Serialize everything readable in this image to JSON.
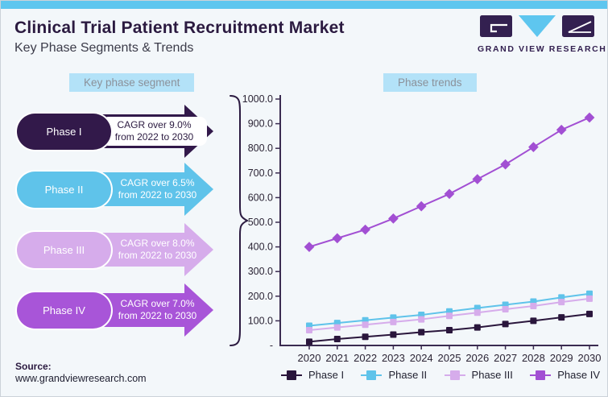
{
  "page": {
    "background": "#f3f7fa",
    "topbar_color": "#5ec6ef"
  },
  "header": {
    "title": "Clinical Trial Patient Recruitment Market",
    "subtitle": "Key Phase Segments & Trends",
    "logo": {
      "brand": "GRAND VIEW RESEARCH",
      "dark_color": "#332050",
      "blue_color": "#5ec6ef"
    }
  },
  "left_panel": {
    "section_label": "Key phase segment",
    "segments": [
      {
        "label": "Phase I",
        "cagr_line1": "CAGR over 9.0%",
        "cagr_line2": "from 2022 to 2030",
        "color": "#32194a",
        "label_on_white": true
      },
      {
        "label": "Phase II",
        "cagr_line1": "CAGR over 6.5%",
        "cagr_line2": "from 2022 to 2030",
        "color": "#5fc3ea",
        "label_on_white": false
      },
      {
        "label": "Phase III",
        "cagr_line1": "CAGR over 8.0%",
        "cagr_line2": "from 2022 to 2030",
        "color": "#d6aceb",
        "label_on_white": false
      },
      {
        "label": "Phase IV",
        "cagr_line1": "CAGR over 7.0%",
        "cagr_line2": "from 2022 to 2030",
        "color": "#a855d8",
        "label_on_white": false
      }
    ]
  },
  "right_panel": {
    "section_label": "Phase trends"
  },
  "chart_data": {
    "type": "line",
    "title": "Phase trends",
    "x": [
      2020,
      2021,
      2022,
      2023,
      2024,
      2025,
      2026,
      2027,
      2028,
      2029,
      2030
    ],
    "series": [
      {
        "name": "Phase I",
        "color": "#2a163c",
        "marker": "square",
        "values": [
          15,
          26,
          35,
          44,
          54,
          62,
          73,
          87,
          100,
          114,
          128
        ]
      },
      {
        "name": "Phase II",
        "color": "#5fc3ea",
        "marker": "square",
        "values": [
          80,
          91,
          102,
          113,
          124,
          138,
          152,
          165,
          178,
          195,
          210
        ]
      },
      {
        "name": "Phase III",
        "color": "#d6aceb",
        "marker": "square",
        "values": [
          62,
          73,
          84,
          95,
          106,
          120,
          133,
          147,
          160,
          176,
          190
        ]
      },
      {
        "name": "Phase IV",
        "color": "#a24fd3",
        "marker": "diamond",
        "values": [
          400,
          435,
          470,
          515,
          565,
          615,
          675,
          735,
          805,
          875,
          925
        ]
      }
    ],
    "ylim": [
      0,
      1000
    ],
    "y_tick_step": 100,
    "y_tick_labels": [
      "-",
      "100.0",
      "200.0",
      "300.0",
      "400.0",
      "500.0",
      "600.0",
      "700.0",
      "800.0",
      "900.0",
      "1000.0"
    ],
    "grid": false,
    "legend_position": "bottom",
    "axis_color": "#3a2b50"
  },
  "footer": {
    "source_label": "Source:",
    "source_url": "www.grandviewresearch.com"
  }
}
